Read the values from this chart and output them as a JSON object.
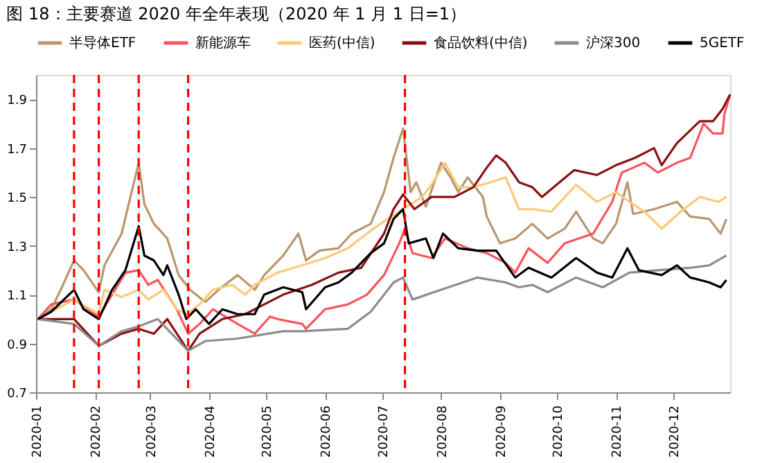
{
  "chart_data": {
    "type": "line",
    "title": "图 18：主要赛道 2020 年全年表现（2020 年 1 月 1 日=1）",
    "legend": "top",
    "grid": false,
    "marker": "none",
    "line_style": "solid",
    "xlim": [
      "2020-01-01",
      "2020-12-31"
    ],
    "xticks": [
      "2020-01",
      "2020-02",
      "2020-03",
      "2020-04",
      "2020-05",
      "2020-06",
      "2020-07",
      "2020-08",
      "2020-09",
      "2020-10",
      "2020-11",
      "2020-12"
    ],
    "ylim": [
      0.7,
      2.0
    ],
    "yticks": [
      0.7,
      0.9,
      1.1,
      1.3,
      1.5,
      1.7,
      1.9
    ],
    "ref_lines": [
      {
        "axis": "x",
        "value": "2020-01-21",
        "color": "#ff0000",
        "line_style": "dashed"
      },
      {
        "axis": "x",
        "value": "2020-02-03",
        "color": "#ff0000",
        "line_style": "dashed"
      },
      {
        "axis": "x",
        "value": "2020-02-24",
        "color": "#ff0000",
        "line_style": "dashed"
      },
      {
        "axis": "x",
        "value": "2020-03-21",
        "color": "#ff0000",
        "line_style": "dashed"
      },
      {
        "axis": "x",
        "value": "2020-07-13",
        "color": "#ff0000",
        "line_style": "dashed"
      }
    ],
    "series": [
      {
        "name": "半导体ETF",
        "color": "#b8966e",
        "x": [
          "2020-01-02",
          "2020-01-09",
          "2020-01-14",
          "2020-01-21",
          "2020-01-26",
          "2020-02-03",
          "2020-02-06",
          "2020-02-15",
          "2020-02-24",
          "2020-02-27",
          "2020-03-03",
          "2020-03-10",
          "2020-03-16",
          "2020-03-22",
          "2020-03-30",
          "2020-04-06",
          "2020-04-16",
          "2020-04-25",
          "2020-04-30",
          "2020-05-10",
          "2020-05-18",
          "2020-05-22",
          "2020-05-29",
          "2020-06-08",
          "2020-06-15",
          "2020-06-25",
          "2020-07-02",
          "2020-07-07",
          "2020-07-12",
          "2020-07-16",
          "2020-07-19",
          "2020-07-24",
          "2020-08-01",
          "2020-08-06",
          "2020-08-10",
          "2020-08-15",
          "2020-08-23",
          "2020-08-25",
          "2020-09-01",
          "2020-09-09",
          "2020-09-18",
          "2020-09-26",
          "2020-10-05",
          "2020-10-11",
          "2020-10-20",
          "2020-10-25",
          "2020-11-01",
          "2020-11-07",
          "2020-11-10",
          "2020-11-21",
          "2020-12-03",
          "2020-12-10",
          "2020-12-20",
          "2020-12-26",
          "2020-12-29"
        ],
        "values": [
          1.0,
          1.04,
          1.12,
          1.24,
          1.2,
          1.11,
          1.22,
          1.35,
          1.64,
          1.47,
          1.39,
          1.33,
          1.18,
          1.12,
          1.07,
          1.12,
          1.18,
          1.12,
          1.18,
          1.26,
          1.35,
          1.24,
          1.28,
          1.29,
          1.35,
          1.39,
          1.52,
          1.66,
          1.78,
          1.52,
          1.56,
          1.46,
          1.64,
          1.58,
          1.52,
          1.58,
          1.5,
          1.42,
          1.31,
          1.33,
          1.39,
          1.33,
          1.37,
          1.44,
          1.33,
          1.31,
          1.39,
          1.56,
          1.43,
          1.45,
          1.48,
          1.42,
          1.41,
          1.35,
          1.41
        ]
      },
      {
        "name": "新能源车",
        "color": "#f5555d",
        "x": [
          "2020-01-02",
          "2020-01-09",
          "2020-01-21",
          "2020-02-03",
          "2020-02-10",
          "2020-02-17",
          "2020-02-24",
          "2020-02-29",
          "2020-03-05",
          "2020-03-15",
          "2020-03-21",
          "2020-03-27",
          "2020-04-03",
          "2020-04-16",
          "2020-04-25",
          "2020-05-03",
          "2020-05-07",
          "2020-05-20",
          "2020-05-22",
          "2020-06-01",
          "2020-06-13",
          "2020-06-23",
          "2020-07-02",
          "2020-07-10",
          "2020-07-13",
          "2020-07-17",
          "2020-07-27",
          "2020-08-03",
          "2020-08-15",
          "2020-08-25",
          "2020-09-04",
          "2020-09-09",
          "2020-09-16",
          "2020-09-26",
          "2020-10-05",
          "2020-10-20",
          "2020-10-30",
          "2020-11-04",
          "2020-11-10",
          "2020-11-16",
          "2020-11-23",
          "2020-12-03",
          "2020-12-10",
          "2020-12-17",
          "2020-12-22",
          "2020-12-27",
          "2020-12-28",
          "2020-12-31"
        ],
        "values": [
          1.0,
          1.06,
          1.08,
          1.01,
          1.1,
          1.19,
          1.2,
          1.14,
          1.16,
          1.04,
          0.94,
          0.98,
          1.04,
          0.98,
          0.94,
          1.01,
          1.0,
          0.98,
          0.96,
          1.04,
          1.06,
          1.1,
          1.18,
          1.31,
          1.37,
          1.27,
          1.25,
          1.33,
          1.29,
          1.27,
          1.23,
          1.19,
          1.29,
          1.23,
          1.31,
          1.35,
          1.48,
          1.6,
          1.62,
          1.64,
          1.6,
          1.64,
          1.66,
          1.8,
          1.76,
          1.76,
          1.84,
          1.92
        ]
      },
      {
        "name": "医药(中信)",
        "color": "#fcc978",
        "x": [
          "2020-01-02",
          "2020-01-21",
          "2020-02-03",
          "2020-02-06",
          "2020-02-15",
          "2020-02-24",
          "2020-02-29",
          "2020-03-08",
          "2020-03-15",
          "2020-03-20",
          "2020-03-27",
          "2020-04-03",
          "2020-04-13",
          "2020-04-20",
          "2020-04-25",
          "2020-05-07",
          "2020-05-20",
          "2020-06-01",
          "2020-06-13",
          "2020-06-23",
          "2020-07-02",
          "2020-07-12",
          "2020-07-22",
          "2020-07-27",
          "2020-08-03",
          "2020-08-10",
          "2020-08-18",
          "2020-08-27",
          "2020-09-04",
          "2020-09-11",
          "2020-09-18",
          "2020-09-28",
          "2020-10-11",
          "2020-10-22",
          "2020-11-01",
          "2020-11-08",
          "2020-11-16",
          "2020-11-25",
          "2020-12-05",
          "2020-12-15",
          "2020-12-25",
          "2020-12-29"
        ],
        "values": [
          1.0,
          1.08,
          1.02,
          1.12,
          1.09,
          1.12,
          1.08,
          1.12,
          1.04,
          1.02,
          1.06,
          1.12,
          1.14,
          1.1,
          1.14,
          1.19,
          1.22,
          1.25,
          1.29,
          1.35,
          1.4,
          1.45,
          1.5,
          1.55,
          1.64,
          1.54,
          1.54,
          1.56,
          1.58,
          1.45,
          1.45,
          1.44,
          1.55,
          1.48,
          1.52,
          1.48,
          1.44,
          1.37,
          1.44,
          1.5,
          1.48,
          1.5
        ]
      },
      {
        "name": "食品饮料(中信)",
        "color": "#8b0f10",
        "x": [
          "2020-01-02",
          "2020-01-21",
          "2020-02-03",
          "2020-02-15",
          "2020-02-24",
          "2020-03-03",
          "2020-03-10",
          "2020-03-21",
          "2020-03-27",
          "2020-04-08",
          "2020-04-20",
          "2020-04-30",
          "2020-05-10",
          "2020-05-25",
          "2020-06-08",
          "2020-06-20",
          "2020-07-02",
          "2020-07-07",
          "2020-07-12",
          "2020-07-18",
          "2020-07-27",
          "2020-08-08",
          "2020-08-18",
          "2020-08-25",
          "2020-08-30",
          "2020-09-04",
          "2020-09-11",
          "2020-09-18",
          "2020-09-23",
          "2020-10-10",
          "2020-10-22",
          "2020-11-01",
          "2020-11-11",
          "2020-11-21",
          "2020-11-25",
          "2020-12-03",
          "2020-12-15",
          "2020-12-22",
          "2020-12-27",
          "2020-12-31"
        ],
        "values": [
          1.0,
          1.0,
          0.89,
          0.94,
          0.96,
          0.94,
          1.0,
          0.87,
          0.94,
          1.0,
          1.02,
          1.06,
          1.1,
          1.14,
          1.19,
          1.21,
          1.35,
          1.45,
          1.51,
          1.45,
          1.5,
          1.5,
          1.54,
          1.62,
          1.67,
          1.64,
          1.56,
          1.54,
          1.5,
          1.61,
          1.59,
          1.63,
          1.66,
          1.7,
          1.63,
          1.72,
          1.81,
          1.81,
          1.86,
          1.92
        ]
      },
      {
        "name": "沪深300",
        "color": "#8c8c8c",
        "x": [
          "2020-01-02",
          "2020-01-21",
          "2020-02-03",
          "2020-02-15",
          "2020-02-24",
          "2020-03-05",
          "2020-03-21",
          "2020-03-30",
          "2020-04-16",
          "2020-05-10",
          "2020-05-20",
          "2020-06-13",
          "2020-06-25",
          "2020-07-07",
          "2020-07-12",
          "2020-07-17",
          "2020-08-01",
          "2020-08-20",
          "2020-09-04",
          "2020-09-11",
          "2020-09-18",
          "2020-09-26",
          "2020-10-11",
          "2020-10-25",
          "2020-11-08",
          "2020-11-23",
          "2020-12-10",
          "2020-12-20",
          "2020-12-29"
        ],
        "values": [
          1.0,
          0.98,
          0.89,
          0.95,
          0.97,
          1.0,
          0.87,
          0.91,
          0.92,
          0.95,
          0.95,
          0.96,
          1.03,
          1.15,
          1.17,
          1.08,
          1.12,
          1.17,
          1.15,
          1.13,
          1.14,
          1.11,
          1.17,
          1.13,
          1.19,
          1.2,
          1.21,
          1.22,
          1.26
        ]
      },
      {
        "name": "5GETF",
        "color": "#000000",
        "x": [
          "2020-01-02",
          "2020-01-09",
          "2020-01-21",
          "2020-01-26",
          "2020-02-03",
          "2020-02-10",
          "2020-02-17",
          "2020-02-24",
          "2020-02-27",
          "2020-03-03",
          "2020-03-08",
          "2020-03-10",
          "2020-03-16",
          "2020-03-20",
          "2020-03-25",
          "2020-04-01",
          "2020-04-08",
          "2020-04-16",
          "2020-04-25",
          "2020-04-30",
          "2020-05-10",
          "2020-05-20",
          "2020-05-22",
          "2020-06-01",
          "2020-06-08",
          "2020-06-15",
          "2020-06-25",
          "2020-07-02",
          "2020-07-07",
          "2020-07-12",
          "2020-07-15",
          "2020-07-24",
          "2020-07-28",
          "2020-08-02",
          "2020-08-10",
          "2020-08-20",
          "2020-08-30",
          "2020-09-09",
          "2020-09-16",
          "2020-09-28",
          "2020-10-11",
          "2020-10-22",
          "2020-10-30",
          "2020-11-07",
          "2020-11-13",
          "2020-11-25",
          "2020-12-03",
          "2020-12-10",
          "2020-12-20",
          "2020-12-26",
          "2020-12-29"
        ],
        "values": [
          1.0,
          1.03,
          1.12,
          1.04,
          1.0,
          1.12,
          1.2,
          1.38,
          1.26,
          1.24,
          1.18,
          1.22,
          1.1,
          1.0,
          1.04,
          0.98,
          1.04,
          1.02,
          1.02,
          1.1,
          1.13,
          1.11,
          1.04,
          1.13,
          1.15,
          1.19,
          1.27,
          1.31,
          1.41,
          1.45,
          1.31,
          1.33,
          1.25,
          1.35,
          1.29,
          1.28,
          1.28,
          1.17,
          1.21,
          1.17,
          1.25,
          1.19,
          1.17,
          1.29,
          1.2,
          1.18,
          1.22,
          1.17,
          1.15,
          1.13,
          1.16
        ]
      }
    ]
  }
}
